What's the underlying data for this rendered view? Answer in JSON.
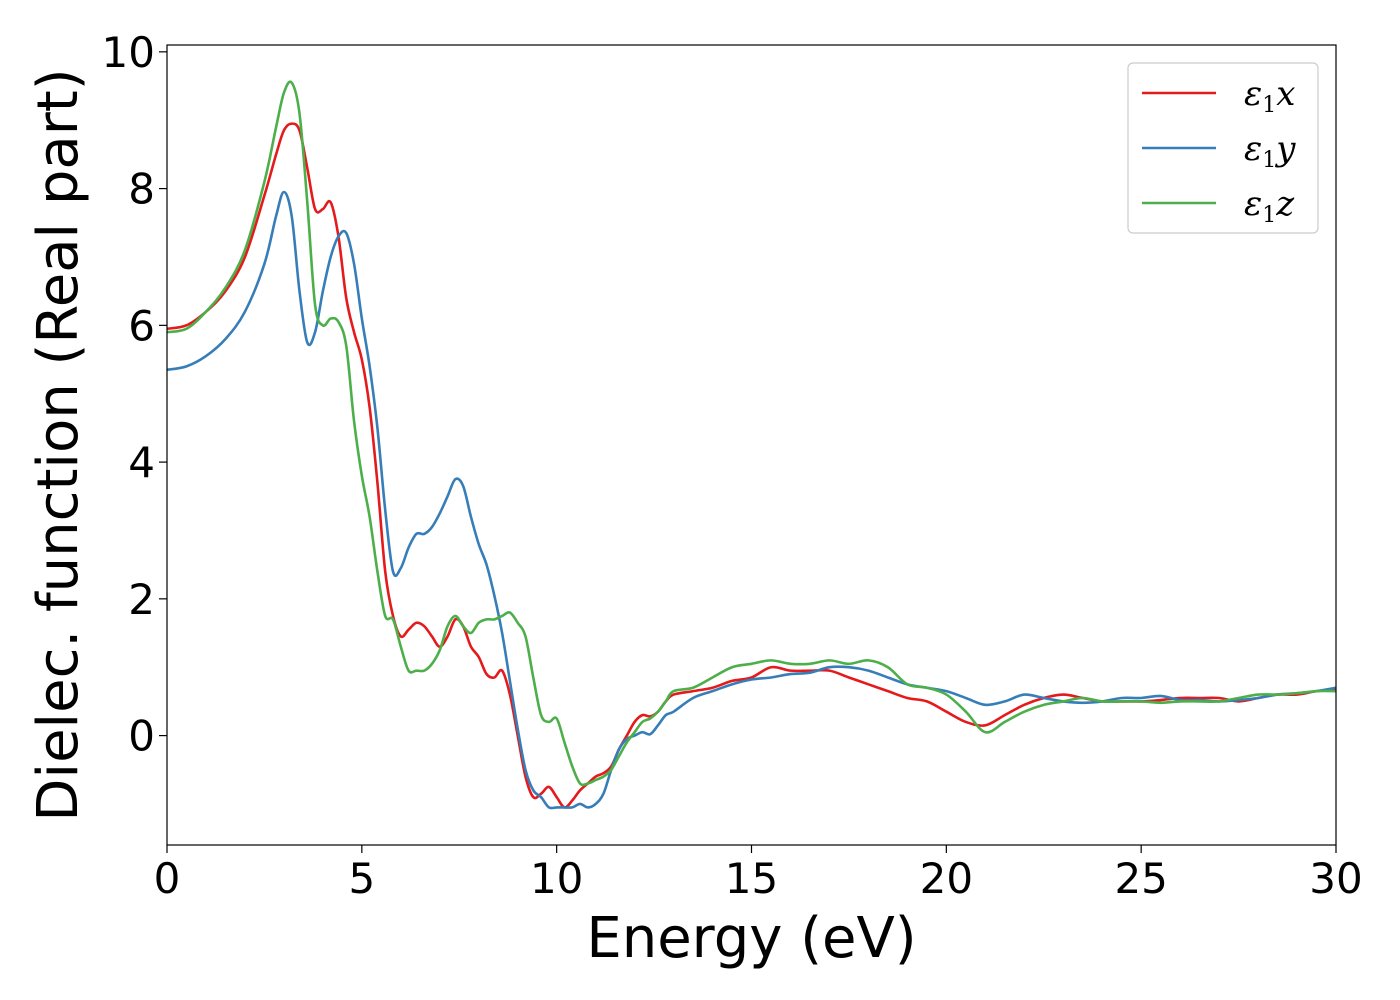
{
  "chart_data": {
    "type": "line",
    "xlabel": "Energy (eV)",
    "ylabel": "Dielec. function (Real part)",
    "xlim": [
      0,
      30
    ],
    "ylim": [
      -1.6,
      10.1
    ],
    "xticks": [
      0,
      5,
      10,
      15,
      20,
      25,
      30
    ],
    "xtick_labels": [
      "0",
      "5",
      "10",
      "15",
      "20",
      "25",
      "30"
    ],
    "yticks": [
      0,
      2,
      4,
      6,
      8,
      10
    ],
    "ytick_labels": [
      "0",
      "2",
      "4",
      "6",
      "8",
      "10"
    ],
    "grid": false,
    "legend_position": "top-right",
    "series": [
      {
        "name": "ε1x",
        "symbol": "ε",
        "sub": "1",
        "axis": "x",
        "color": "#e41a1c",
        "x": [
          0,
          0.5,
          1.0,
          1.5,
          2.0,
          2.5,
          2.8,
          3.0,
          3.2,
          3.4,
          3.6,
          3.8,
          4.0,
          4.2,
          4.4,
          4.6,
          4.8,
          5.0,
          5.2,
          5.4,
          5.6,
          5.8,
          6.0,
          6.2,
          6.4,
          6.6,
          6.8,
          7.0,
          7.2,
          7.4,
          7.6,
          7.8,
          8.0,
          8.2,
          8.4,
          8.6,
          8.8,
          9.0,
          9.2,
          9.4,
          9.6,
          9.8,
          10.0,
          10.2,
          10.4,
          10.6,
          10.8,
          11.0,
          11.2,
          11.4,
          11.6,
          11.8,
          12.0,
          12.2,
          12.4,
          12.6,
          12.8,
          13.0,
          13.5,
          14.0,
          14.5,
          15.0,
          15.5,
          16.0,
          16.5,
          17.0,
          17.5,
          18.0,
          18.5,
          19.0,
          19.5,
          20.0,
          20.5,
          21.0,
          21.5,
          22.0,
          22.5,
          23.0,
          23.5,
          24.0,
          24.5,
          25.0,
          25.5,
          26.0,
          26.5,
          27.0,
          27.5,
          28.0,
          28.5,
          29.0,
          29.5,
          30.0
        ],
        "y": [
          5.95,
          6.0,
          6.2,
          6.5,
          7.0,
          7.9,
          8.5,
          8.85,
          8.95,
          8.85,
          8.3,
          7.7,
          7.7,
          7.8,
          7.3,
          6.4,
          5.9,
          5.5,
          4.8,
          3.7,
          2.4,
          1.75,
          1.45,
          1.55,
          1.65,
          1.6,
          1.45,
          1.3,
          1.45,
          1.7,
          1.6,
          1.3,
          1.15,
          0.9,
          0.85,
          0.95,
          0.6,
          0.0,
          -0.6,
          -0.9,
          -0.85,
          -0.75,
          -0.9,
          -1.05,
          -0.95,
          -0.8,
          -0.7,
          -0.6,
          -0.55,
          -0.45,
          -0.2,
          0.0,
          0.2,
          0.3,
          0.28,
          0.35,
          0.5,
          0.6,
          0.65,
          0.7,
          0.8,
          0.85,
          1.0,
          0.95,
          0.95,
          0.95,
          0.85,
          0.75,
          0.65,
          0.55,
          0.5,
          0.35,
          0.2,
          0.15,
          0.3,
          0.45,
          0.55,
          0.6,
          0.55,
          0.5,
          0.5,
          0.5,
          0.52,
          0.55,
          0.55,
          0.55,
          0.5,
          0.55,
          0.6,
          0.6,
          0.65,
          0.68
        ]
      },
      {
        "name": "ε1y",
        "symbol": "ε",
        "sub": "1",
        "axis": "y",
        "color": "#377eb8",
        "x": [
          0,
          0.5,
          1.0,
          1.5,
          2.0,
          2.5,
          2.8,
          3.0,
          3.2,
          3.4,
          3.6,
          3.8,
          4.0,
          4.2,
          4.4,
          4.6,
          4.8,
          5.0,
          5.2,
          5.4,
          5.6,
          5.8,
          6.0,
          6.2,
          6.4,
          6.6,
          6.8,
          7.0,
          7.2,
          7.4,
          7.6,
          7.8,
          8.0,
          8.2,
          8.4,
          8.6,
          8.8,
          9.0,
          9.2,
          9.4,
          9.6,
          9.8,
          10.0,
          10.2,
          10.4,
          10.6,
          10.8,
          11.0,
          11.2,
          11.4,
          11.6,
          11.8,
          12.0,
          12.2,
          12.4,
          12.6,
          12.8,
          13.0,
          13.5,
          14.0,
          14.5,
          15.0,
          15.5,
          16.0,
          16.5,
          17.0,
          17.5,
          18.0,
          18.5,
          19.0,
          19.5,
          20.0,
          20.5,
          21.0,
          21.5,
          22.0,
          22.5,
          23.0,
          23.5,
          24.0,
          24.5,
          25.0,
          25.5,
          26.0,
          26.5,
          27.0,
          27.5,
          28.0,
          28.5,
          29.0,
          29.5,
          30.0
        ],
        "y": [
          5.35,
          5.4,
          5.55,
          5.8,
          6.2,
          6.9,
          7.6,
          7.95,
          7.6,
          6.5,
          5.75,
          5.9,
          6.5,
          7.0,
          7.3,
          7.35,
          6.9,
          6.1,
          5.4,
          4.5,
          3.3,
          2.4,
          2.45,
          2.75,
          2.95,
          2.95,
          3.05,
          3.25,
          3.5,
          3.75,
          3.65,
          3.2,
          2.8,
          2.5,
          2.05,
          1.5,
          0.8,
          0.1,
          -0.5,
          -0.8,
          -0.9,
          -1.05,
          -1.05,
          -1.05,
          -1.05,
          -1.0,
          -1.05,
          -1.0,
          -0.85,
          -0.5,
          -0.2,
          -0.05,
          0.0,
          0.05,
          0.02,
          0.15,
          0.3,
          0.35,
          0.55,
          0.65,
          0.75,
          0.82,
          0.85,
          0.9,
          0.92,
          1.0,
          1.0,
          0.95,
          0.85,
          0.75,
          0.7,
          0.65,
          0.55,
          0.45,
          0.5,
          0.6,
          0.55,
          0.5,
          0.48,
          0.5,
          0.55,
          0.55,
          0.58,
          0.52,
          0.52,
          0.5,
          0.52,
          0.55,
          0.6,
          0.62,
          0.65,
          0.7
        ]
      },
      {
        "name": "ε1z",
        "symbol": "ε",
        "sub": "1",
        "axis": "z",
        "color": "#4daf4a",
        "x": [
          0,
          0.5,
          1.0,
          1.5,
          2.0,
          2.5,
          2.8,
          3.0,
          3.2,
          3.4,
          3.6,
          3.8,
          4.0,
          4.2,
          4.4,
          4.6,
          4.8,
          5.0,
          5.2,
          5.4,
          5.6,
          5.8,
          6.0,
          6.2,
          6.4,
          6.6,
          6.8,
          7.0,
          7.2,
          7.4,
          7.6,
          7.8,
          8.0,
          8.2,
          8.4,
          8.6,
          8.8,
          9.0,
          9.2,
          9.4,
          9.6,
          9.8,
          10.0,
          10.2,
          10.4,
          10.6,
          10.8,
          11.0,
          11.2,
          11.4,
          11.6,
          11.8,
          12.0,
          12.2,
          12.4,
          12.6,
          12.8,
          13.0,
          13.5,
          14.0,
          14.5,
          15.0,
          15.5,
          16.0,
          16.5,
          17.0,
          17.5,
          18.0,
          18.5,
          19.0,
          19.5,
          20.0,
          20.5,
          21.0,
          21.5,
          22.0,
          22.5,
          23.0,
          23.5,
          24.0,
          24.5,
          25.0,
          25.5,
          26.0,
          26.5,
          27.0,
          27.5,
          28.0,
          28.5,
          29.0,
          29.5,
          30.0
        ],
        "y": [
          5.9,
          5.95,
          6.2,
          6.55,
          7.1,
          8.1,
          8.9,
          9.4,
          9.55,
          9.1,
          7.8,
          6.3,
          6.0,
          6.1,
          6.05,
          5.7,
          4.6,
          3.8,
          3.2,
          2.4,
          1.75,
          1.7,
          1.3,
          0.95,
          0.95,
          0.95,
          1.05,
          1.25,
          1.6,
          1.75,
          1.6,
          1.5,
          1.65,
          1.7,
          1.7,
          1.75,
          1.8,
          1.65,
          1.45,
          0.85,
          0.3,
          0.2,
          0.25,
          -0.1,
          -0.45,
          -0.7,
          -0.7,
          -0.65,
          -0.6,
          -0.5,
          -0.3,
          -0.1,
          0.05,
          0.2,
          0.25,
          0.35,
          0.5,
          0.65,
          0.7,
          0.85,
          1.0,
          1.05,
          1.1,
          1.05,
          1.05,
          1.1,
          1.05,
          1.1,
          1.0,
          0.75,
          0.7,
          0.6,
          0.35,
          0.05,
          0.2,
          0.35,
          0.45,
          0.5,
          0.55,
          0.5,
          0.5,
          0.5,
          0.48,
          0.5,
          0.5,
          0.5,
          0.55,
          0.6,
          0.6,
          0.62,
          0.65,
          0.65
        ]
      }
    ]
  }
}
